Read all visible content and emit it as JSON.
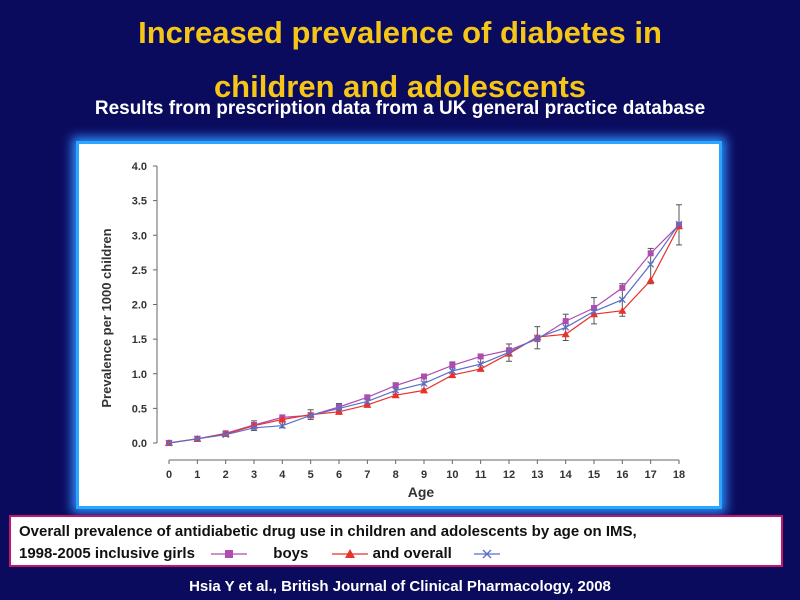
{
  "title": {
    "line1": "Increased prevalence of diabetes in",
    "line2": "children and adolescents"
  },
  "subtitle": "Results from prescription data from a UK general practice database",
  "caption": {
    "line1": "Overall prevalence of antidiabetic drug use in children and adolescents by age on IMS,",
    "line2_prefix": "1998-2005 inclusive girls",
    "boys_label": "boys",
    "overall_label": "and overall"
  },
  "citation": "Hsia Y et al., British Journal of Clinical Pharmacology, 2008",
  "colors": {
    "girls": "#b04cb0",
    "boys": "#e8322a",
    "overall": "#5a6fc8",
    "error_bar": "#555555"
  },
  "chart_data": {
    "type": "line",
    "xlabel": "Age",
    "ylabel": "Prevalence per 1000 children",
    "x": [
      0,
      1,
      2,
      3,
      4,
      5,
      6,
      7,
      8,
      9,
      10,
      11,
      12,
      13,
      14,
      15,
      16,
      17,
      18
    ],
    "xlim": [
      0,
      18
    ],
    "ylim": [
      0,
      4.0
    ],
    "yticks": [
      "0.0",
      "0.5",
      "1.0",
      "1.5",
      "2.0",
      "2.5",
      "3.0",
      "3.5",
      "4.0"
    ],
    "xticks": [
      "0",
      "1",
      "2",
      "3",
      "4",
      "5",
      "6",
      "7",
      "8",
      "9",
      "10",
      "11",
      "12",
      "13",
      "14",
      "15",
      "16",
      "17",
      "18"
    ],
    "grid": false,
    "series": [
      {
        "key": "girls",
        "marker": "square",
        "values": [
          0.0,
          0.06,
          0.14,
          0.26,
          0.37,
          0.4,
          0.52,
          0.66,
          0.83,
          0.96,
          1.12,
          1.25,
          1.34,
          1.5,
          1.76,
          1.95,
          2.24,
          2.74,
          3.15
        ]
      },
      {
        "key": "boys",
        "marker": "triangle",
        "values": [
          0.0,
          0.06,
          0.13,
          0.25,
          0.34,
          0.41,
          0.45,
          0.55,
          0.69,
          0.76,
          0.98,
          1.07,
          1.29,
          1.53,
          1.57,
          1.86,
          1.91,
          2.35,
          3.13
        ]
      },
      {
        "key": "overall",
        "marker": "x",
        "values": [
          0.0,
          0.06,
          0.12,
          0.22,
          0.25,
          0.4,
          0.5,
          0.6,
          0.76,
          0.86,
          1.04,
          1.14,
          1.31,
          1.52,
          1.67,
          1.9,
          2.07,
          2.58,
          3.16
        ]
      }
    ],
    "error_bars": {
      "x": [
        3,
        4,
        5,
        6,
        7,
        8,
        9,
        10,
        11,
        12,
        13,
        14,
        15,
        16,
        17,
        18
      ],
      "low": [
        0.18,
        0.22,
        0.34,
        0.44,
        0.55,
        0.7,
        0.78,
        0.95,
        1.05,
        1.18,
        1.36,
        1.48,
        1.72,
        1.83,
        2.3,
        2.86
      ],
      "high": [
        0.32,
        0.38,
        0.48,
        0.57,
        0.69,
        0.87,
        0.96,
        1.17,
        1.28,
        1.43,
        1.68,
        1.86,
        2.1,
        2.3,
        2.81,
        3.44
      ]
    }
  }
}
